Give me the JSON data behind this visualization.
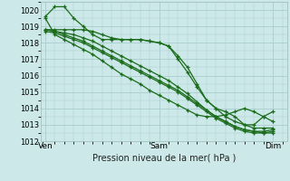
{
  "title": "Pression niveau de la mer( hPa )",
  "bg_color": "#cce8e8",
  "grid_color": "#aacccc",
  "line_color": "#1a6b1a",
  "ylim": [
    1012,
    1020.5
  ],
  "yticks": [
    1012,
    1013,
    1014,
    1015,
    1016,
    1017,
    1018,
    1019,
    1020
  ],
  "xtick_labels": [
    "Ven",
    "Sam",
    "Dim"
  ],
  "xtick_positions": [
    0,
    12,
    24
  ],
  "xlim": [
    -0.5,
    25.5
  ],
  "lines": [
    [
      1019.6,
      1020.2,
      1020.2,
      1019.5,
      1019.0,
      1018.5,
      1018.2,
      1018.2,
      1018.2,
      1018.2,
      1018.2,
      1018.1,
      1018.0,
      1017.8,
      1017.2,
      1016.5,
      1015.5,
      1014.5,
      1014.0,
      1013.5,
      1013.2,
      1013.0,
      1013.0,
      1013.5,
      1013.8
    ],
    [
      1018.8,
      1018.8,
      1018.8,
      1018.8,
      1018.8,
      1018.7,
      1018.5,
      1018.3,
      1018.2,
      1018.2,
      1018.2,
      1018.1,
      1018.0,
      1017.8,
      1017.0,
      1016.2,
      1015.3,
      1014.5,
      1014.0,
      1013.8,
      1013.5,
      1013.0,
      1012.8,
      1012.8,
      1012.8
    ],
    [
      1018.8,
      1018.7,
      1018.6,
      1018.5,
      1018.3,
      1018.1,
      1017.8,
      1017.5,
      1017.2,
      1016.9,
      1016.6,
      1016.3,
      1016.0,
      1015.7,
      1015.3,
      1014.9,
      1014.4,
      1013.9,
      1013.5,
      1013.2,
      1012.9,
      1012.7,
      1012.6,
      1012.6,
      1012.7
    ],
    [
      1018.8,
      1018.7,
      1018.5,
      1018.3,
      1018.1,
      1017.8,
      1017.5,
      1017.2,
      1016.9,
      1016.6,
      1016.3,
      1016.0,
      1015.7,
      1015.4,
      1015.1,
      1014.7,
      1014.3,
      1013.9,
      1013.5,
      1013.2,
      1012.9,
      1012.7,
      1012.6,
      1012.5,
      1012.6
    ],
    [
      1018.7,
      1018.6,
      1018.4,
      1018.2,
      1018.0,
      1017.7,
      1017.4,
      1017.1,
      1016.8,
      1016.5,
      1016.2,
      1015.9,
      1015.6,
      1015.3,
      1015.0,
      1014.6,
      1014.2,
      1013.8,
      1013.4,
      1013.1,
      1012.8,
      1012.6,
      1012.5,
      1012.5,
      1012.5
    ],
    [
      1019.5,
      1018.5,
      1018.2,
      1017.9,
      1017.6,
      1017.3,
      1016.9,
      1016.5,
      1016.1,
      1015.8,
      1015.5,
      1015.1,
      1014.8,
      1014.5,
      1014.2,
      1013.9,
      1013.6,
      1013.5,
      1013.5,
      1013.6,
      1013.8,
      1014.0,
      1013.8,
      1013.5,
      1013.2
    ]
  ]
}
